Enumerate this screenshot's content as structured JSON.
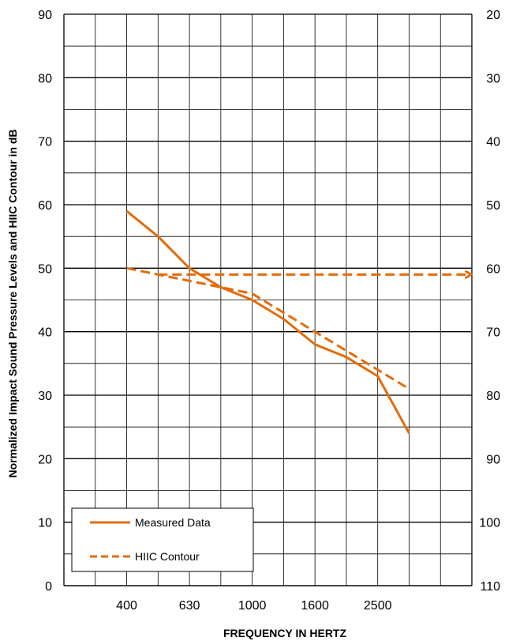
{
  "chart_data": {
    "type": "line",
    "xlabel": "FREQUENCY IN HERTZ",
    "ylabel": "Normalized Impact Sound Pressure Levels and HIIC Contour in dB",
    "x_tick_labels": [
      "400",
      "630",
      "1000",
      "1600",
      "2500"
    ],
    "x_bands": [
      "400",
      "500",
      "630",
      "800",
      "1000",
      "1250",
      "1600",
      "2000",
      "2500",
      "3150"
    ],
    "ylim": [
      0,
      90
    ],
    "y_ticks": [
      0,
      10,
      20,
      30,
      40,
      50,
      60,
      70,
      80,
      90
    ],
    "y2_ticks": [
      110,
      100,
      90,
      80,
      70,
      60,
      50,
      40,
      30,
      20
    ],
    "grid": true,
    "legend_position": "bottom-left",
    "series": [
      {
        "name": "Measured Data",
        "style": "solid",
        "color": "#E36C0A",
        "x": [
          "400",
          "500",
          "630",
          "800",
          "1000",
          "1250",
          "1600",
          "2000",
          "2500",
          "3150"
        ],
        "values": [
          59,
          55,
          50,
          47,
          45,
          42,
          38,
          36,
          33,
          24
        ]
      },
      {
        "name": "HIIC Contour",
        "style": "dashed",
        "color": "#E36C0A",
        "x": [
          "400",
          "500",
          "630",
          "800",
          "1000",
          "1250",
          "1600",
          "2000",
          "2500",
          "3150"
        ],
        "values": [
          50,
          49,
          48,
          47,
          46,
          43,
          40,
          37,
          34,
          31
        ]
      },
      {
        "style": "dashed-arrow",
        "color": "#E36C0A",
        "x": [
          "500",
          "5000"
        ],
        "values": [
          49,
          49
        ]
      }
    ]
  }
}
